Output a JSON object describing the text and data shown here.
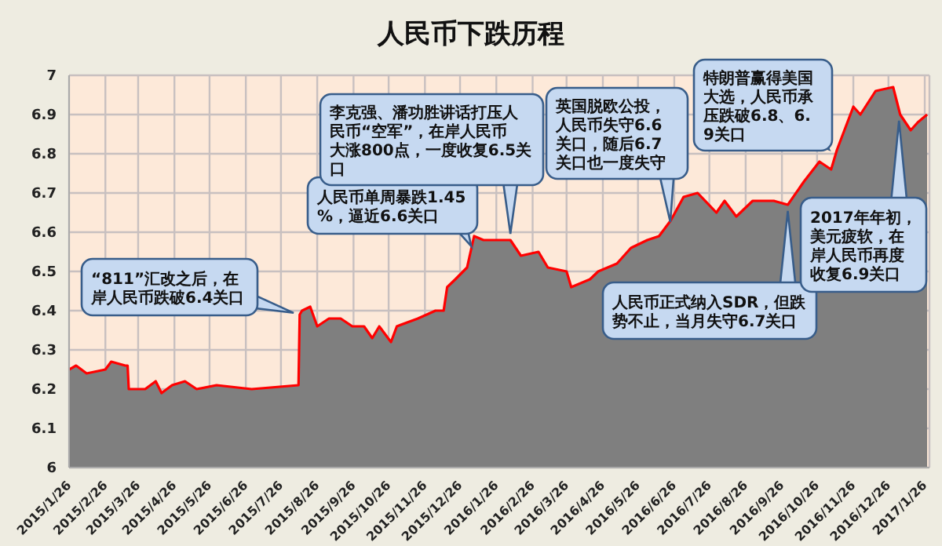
{
  "chart_data": {
    "type": "area",
    "title": "人民币下跌历程",
    "x": [
      "2015-01-26",
      "2015-02-01",
      "2015-02-10",
      "2015-02-26",
      "2015-03-03",
      "2015-03-15",
      "2015-03-17",
      "2015-03-18",
      "2015-04-01",
      "2015-04-10",
      "2015-04-15",
      "2015-04-24",
      "2015-05-05",
      "2015-05-15",
      "2015-06-01",
      "2015-07-01",
      "2015-08-10",
      "2015-08-11",
      "2015-08-13",
      "2015-08-20",
      "2015-08-26",
      "2015-09-05",
      "2015-09-15",
      "2015-09-25",
      "2015-10-05",
      "2015-10-12",
      "2015-10-18",
      "2015-10-28",
      "2015-11-02",
      "2015-11-20",
      "2015-12-05",
      "2015-12-12",
      "2015-12-15",
      "2015-12-22",
      "2016-01-01",
      "2016-01-07",
      "2016-01-15",
      "2016-02-07",
      "2016-02-16",
      "2016-03-02",
      "2016-03-10",
      "2016-03-26",
      "2016-03-30",
      "2016-04-15",
      "2016-04-22",
      "2016-05-08",
      "2016-05-20",
      "2016-06-03",
      "2016-06-13",
      "2016-06-23",
      "2016-07-04",
      "2016-07-16",
      "2016-08-01",
      "2016-08-08",
      "2016-08-18",
      "2016-09-01",
      "2016-09-19",
      "2016-10-01",
      "2016-10-15",
      "2016-10-28",
      "2016-11-07",
      "2016-11-12",
      "2016-11-26",
      "2016-12-02",
      "2016-12-15",
      "2016-12-30",
      "2017-01-05",
      "2017-01-14",
      "2017-01-20",
      "2017-01-28"
    ],
    "series": [
      {
        "color": "#7f7f7f",
        "values": [
          6.25,
          6.26,
          6.24,
          6.25,
          6.27,
          6.26,
          6.26,
          6.2,
          6.2,
          6.22,
          6.19,
          6.21,
          6.22,
          6.2,
          6.21,
          6.2,
          6.21,
          6.39,
          6.4,
          6.41,
          6.36,
          6.38,
          6.38,
          6.36,
          6.36,
          6.33,
          6.36,
          6.32,
          6.36,
          6.38,
          6.4,
          6.4,
          6.46,
          6.48,
          6.51,
          6.59,
          6.58,
          6.58,
          6.54,
          6.55,
          6.51,
          6.5,
          6.46,
          6.48,
          6.5,
          6.52,
          6.56,
          6.58,
          6.59,
          6.63,
          6.69,
          6.7,
          6.65,
          6.68,
          6.64,
          6.68,
          6.68,
          6.67,
          6.73,
          6.78,
          6.76,
          6.81,
          6.92,
          6.9,
          6.96,
          6.97,
          6.9,
          6.86,
          6.88,
          6.9
        ]
      }
    ],
    "xlim": [
      "2015-01-26",
      "2017-01-30"
    ],
    "xticks": [
      {
        "value": "2015-01-26",
        "label": "2015/1/26"
      },
      {
        "value": "2015-02-26",
        "label": "2015/2/26"
      },
      {
        "value": "2015-03-26",
        "label": "2015/3/26"
      },
      {
        "value": "2015-04-26",
        "label": "2015/4/26"
      },
      {
        "value": "2015-05-26",
        "label": "2015/5/26"
      },
      {
        "value": "2015-06-26",
        "label": "2015/6/26"
      },
      {
        "value": "2015-07-26",
        "label": "2015/7/26"
      },
      {
        "value": "2015-08-26",
        "label": "2015/8/26"
      },
      {
        "value": "2015-09-26",
        "label": "2015/9/26"
      },
      {
        "value": "2015-10-26",
        "label": "2015/10/26"
      },
      {
        "value": "2015-11-26",
        "label": "2015/11/26"
      },
      {
        "value": "2015-12-26",
        "label": "2015/12/26"
      },
      {
        "value": "2016-01-26",
        "label": "2016/1/26"
      },
      {
        "value": "2016-02-26",
        "label": "2016/2/26"
      },
      {
        "value": "2016-03-26",
        "label": "2016/3/26"
      },
      {
        "value": "2016-04-26",
        "label": "2016/4/26"
      },
      {
        "value": "2016-05-26",
        "label": "2016/5/26"
      },
      {
        "value": "2016-06-26",
        "label": "2016/6/26"
      },
      {
        "value": "2016-07-26",
        "label": "2016/7/26"
      },
      {
        "value": "2016-08-26",
        "label": "2016/8/26"
      },
      {
        "value": "2016-09-26",
        "label": "2016/9/26"
      },
      {
        "value": "2016-10-26",
        "label": "2016/10/26"
      },
      {
        "value": "2016-11-26",
        "label": "2016/11/26"
      },
      {
        "value": "2016-12-26",
        "label": "2016/12/26"
      },
      {
        "value": "2017-01-26",
        "label": "2017/1/26"
      }
    ],
    "ylim": [
      6,
      7
    ],
    "yticks": [
      6,
      6.1,
      6.2,
      6.3,
      6.4,
      6.5,
      6.6,
      6.7,
      6.8,
      6.9,
      7
    ],
    "grid": true,
    "annotations": [
      {
        "text": "“811”汇改之后，在岸人民币跌破6.4关口",
        "x": "2015-08-11",
        "y": 6.39
      },
      {
        "text": "人民币单周暴跌1.45%，逼近6.6关口",
        "x": "2016-01-07",
        "y": 6.55
      },
      {
        "text": "李克强、潘功胜讲话打压人民币“空军”，在岸人民币大涨800点，一度收复6.5关口",
        "x": "2016-02-07",
        "y": 6.58
      },
      {
        "text": "英国脱欧公投，人民币失守6.6关口，随后6.7关口也一度失守",
        "x": "2016-06-23",
        "y": 6.61
      },
      {
        "text": "特朗普赢得美国大选，人民币承压跌破6.8、6.9关口",
        "x": "2016-11-09",
        "y": 6.8
      },
      {
        "text": "人民币正式纳入SDR，但跌势不止，当月失守6.7关口",
        "x": "2016-10-01",
        "y": 6.67
      },
      {
        "text": "2017年年初，美元疲软，在岸人民币再度收复6.9关口",
        "x": "2017-01-04",
        "y": 6.9
      }
    ]
  }
}
